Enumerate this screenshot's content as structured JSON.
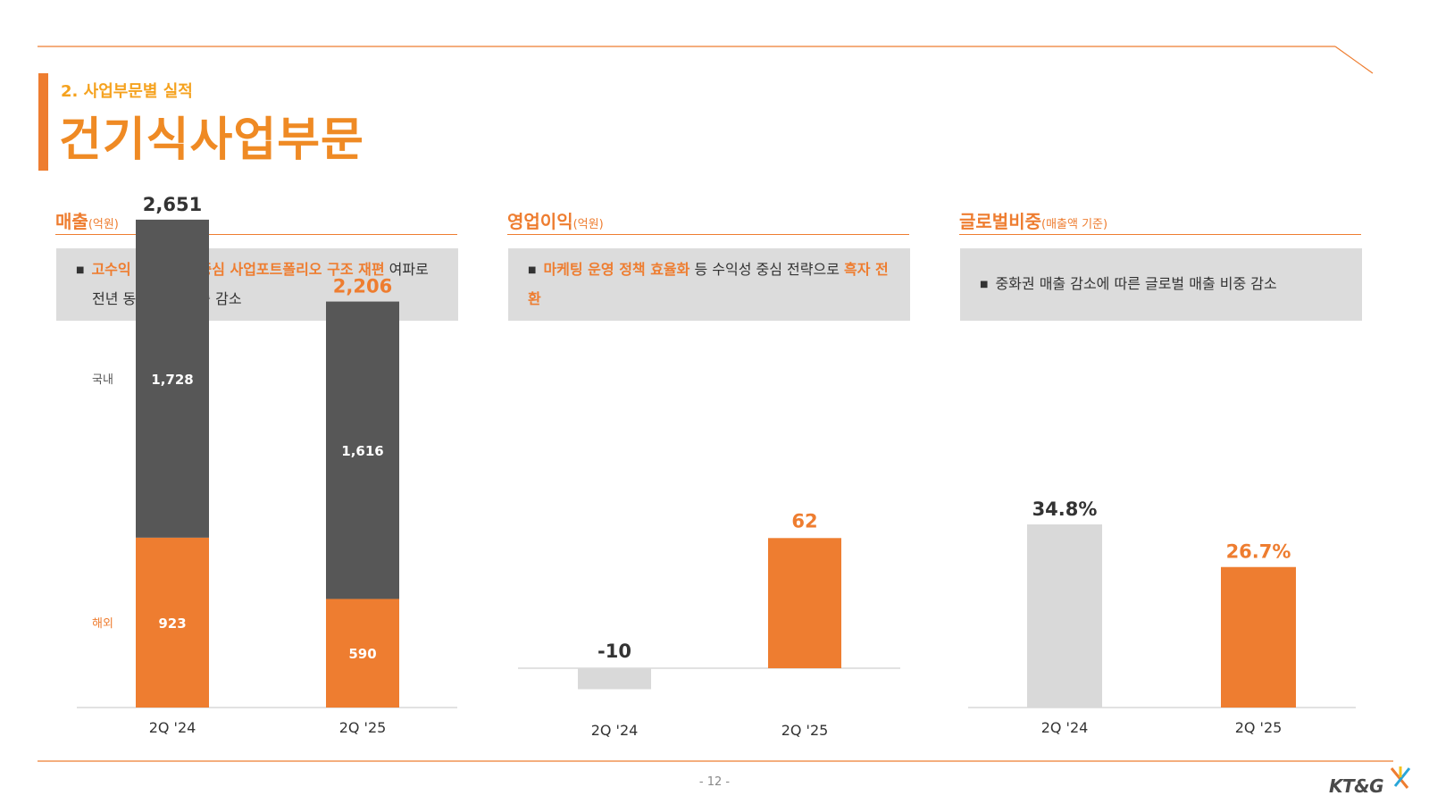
{
  "header": {
    "subtitle": "2. 사업부문별 실적",
    "title": "건기식사업부문"
  },
  "sections": [
    {
      "name": "매출",
      "unit": "(억원)",
      "note_parts": [
        {
          "text": "고수익 채널/제품  중심 사업포트폴리오 구조 재편",
          "highlight": true
        },
        {
          "text": " 여파로",
          "highlight": false
        }
      ],
      "note_line2": "전년 동기 대비 매출 감소"
    },
    {
      "name": "영업이익",
      "unit": "(억원)",
      "note_parts": [
        {
          "text": "마케팅 운영 정책 효율화",
          "highlight": true
        },
        {
          "text": " 등 수익성 중심 전략으로 ",
          "highlight": false
        },
        {
          "text": "흑자 전환",
          "highlight": true
        }
      ]
    },
    {
      "name": "글로벌비중",
      "unit": "(매출액 기준)",
      "note_parts": [
        {
          "text": "중화권 매출 감소에 따른 글로벌 매출 비중 감소",
          "highlight": false
        }
      ]
    }
  ],
  "colors": {
    "accent": "#ee7d30",
    "dark_bar": "#575757",
    "light_bar": "#d9d9d9",
    "box_bg": "#dcdcdc"
  },
  "chart_data": [
    {
      "type": "bar",
      "stacked": true,
      "categories": [
        "2Q '24",
        "2Q '25"
      ],
      "series": [
        {
          "name": "해외",
          "values": [
            923,
            590
          ]
        },
        {
          "name": "국내",
          "values": [
            1728,
            1616
          ]
        }
      ],
      "totals": [
        2651,
        2206
      ],
      "total_labels": [
        "2,651",
        "2,206"
      ],
      "segment_labels": {
        "해외": [
          "923",
          "590"
        ],
        "국내": [
          "1,728",
          "1,616"
        ]
      }
    },
    {
      "type": "bar",
      "categories": [
        "2Q '24",
        "2Q '25"
      ],
      "values": [
        -10,
        62
      ],
      "labels": [
        "-10",
        "62"
      ]
    },
    {
      "type": "bar",
      "categories": [
        "2Q '24",
        "2Q '25"
      ],
      "values": [
        34.8,
        26.7
      ],
      "labels": [
        "34.8%",
        "26.7%"
      ]
    }
  ],
  "footer": {
    "page": "- 12 -",
    "logo": "KT&G"
  }
}
